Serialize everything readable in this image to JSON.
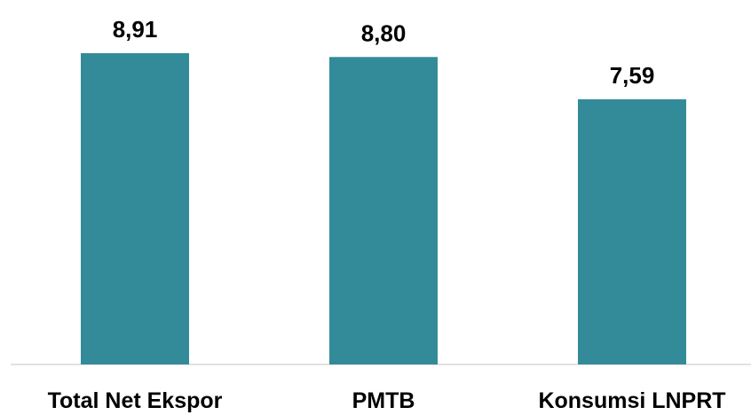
{
  "chart_data": {
    "type": "bar",
    "categories": [
      "Total Net Ekspor",
      "PMTB",
      "Konsumsi LNPRT"
    ],
    "values": [
      8.91,
      8.8,
      7.59
    ],
    "value_labels": [
      "8,91",
      "8,80",
      "7,59"
    ],
    "title": "",
    "xlabel": "",
    "ylabel": "",
    "ylim": [
      0,
      10
    ],
    "grid": false,
    "legend": "none",
    "bar_color": "#338b99"
  }
}
